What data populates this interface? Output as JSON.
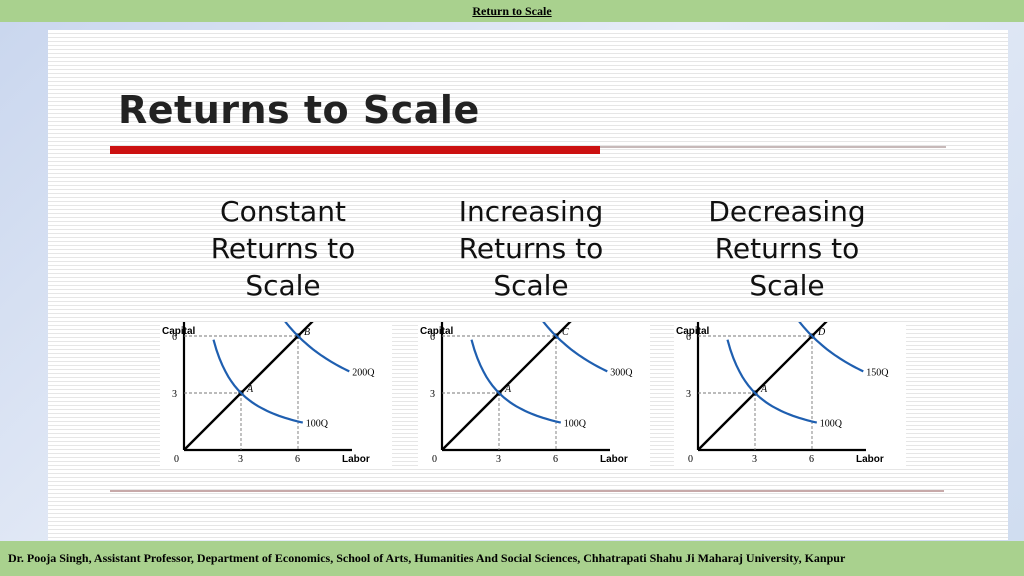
{
  "header": {
    "title": "Return to Scale"
  },
  "slide": {
    "title": "Returns to Scale"
  },
  "headings": [
    {
      "lines": [
        "Constant",
        "Returns to",
        "Scale"
      ]
    },
    {
      "lines": [
        "Increasing",
        "Returns to",
        "Scale"
      ]
    },
    {
      "lines": [
        "Decreasing",
        "Returns to",
        "Scale"
      ]
    }
  ],
  "footer": {
    "text": "Dr. Pooja Singh, Assistant Professor, Department of Economics, School of Arts, Humanities And Social Sciences, Chhatrapati Shahu Ji Maharaj University, Kanpur"
  },
  "colors": {
    "isoquant": "#1f5fb0",
    "ray": "#000000",
    "accent_red": "#cc1111",
    "bar_green": "#a9d18e"
  },
  "chart_data": [
    {
      "type": "line",
      "xlabel": "Labor",
      "ylabel": "Capital",
      "x_ticks": [
        "0",
        "3",
        "6"
      ],
      "y_ticks": [
        "3",
        "6"
      ],
      "xlim": [
        0,
        9
      ],
      "ylim": [
        0,
        9
      ],
      "series": [
        {
          "name": "100Q",
          "passes_through": [
            3,
            3
          ]
        },
        {
          "name": "200Q",
          "passes_through": [
            6,
            6
          ]
        }
      ],
      "points": [
        {
          "label": "A",
          "x": 3,
          "y": 3
        },
        {
          "label": "B",
          "x": 6,
          "y": 6
        }
      ]
    },
    {
      "type": "line",
      "xlabel": "Labor",
      "ylabel": "Capital",
      "x_ticks": [
        "0",
        "3",
        "6"
      ],
      "y_ticks": [
        "3",
        "6"
      ],
      "xlim": [
        0,
        9
      ],
      "ylim": [
        0,
        9
      ],
      "series": [
        {
          "name": "100Q",
          "passes_through": [
            3,
            3
          ]
        },
        {
          "name": "300Q",
          "passes_through": [
            6,
            6
          ]
        }
      ],
      "points": [
        {
          "label": "A",
          "x": 3,
          "y": 3
        },
        {
          "label": "C",
          "x": 6,
          "y": 6
        }
      ]
    },
    {
      "type": "line",
      "xlabel": "Labor",
      "ylabel": "Capital",
      "x_ticks": [
        "0",
        "3",
        "6"
      ],
      "y_ticks": [
        "3",
        "6"
      ],
      "xlim": [
        0,
        9
      ],
      "ylim": [
        0,
        9
      ],
      "series": [
        {
          "name": "100Q",
          "passes_through": [
            3,
            3
          ]
        },
        {
          "name": "150Q",
          "passes_through": [
            6,
            6
          ]
        }
      ],
      "points": [
        {
          "label": "A",
          "x": 3,
          "y": 3
        },
        {
          "label": "D",
          "x": 6,
          "y": 6
        }
      ]
    }
  ]
}
